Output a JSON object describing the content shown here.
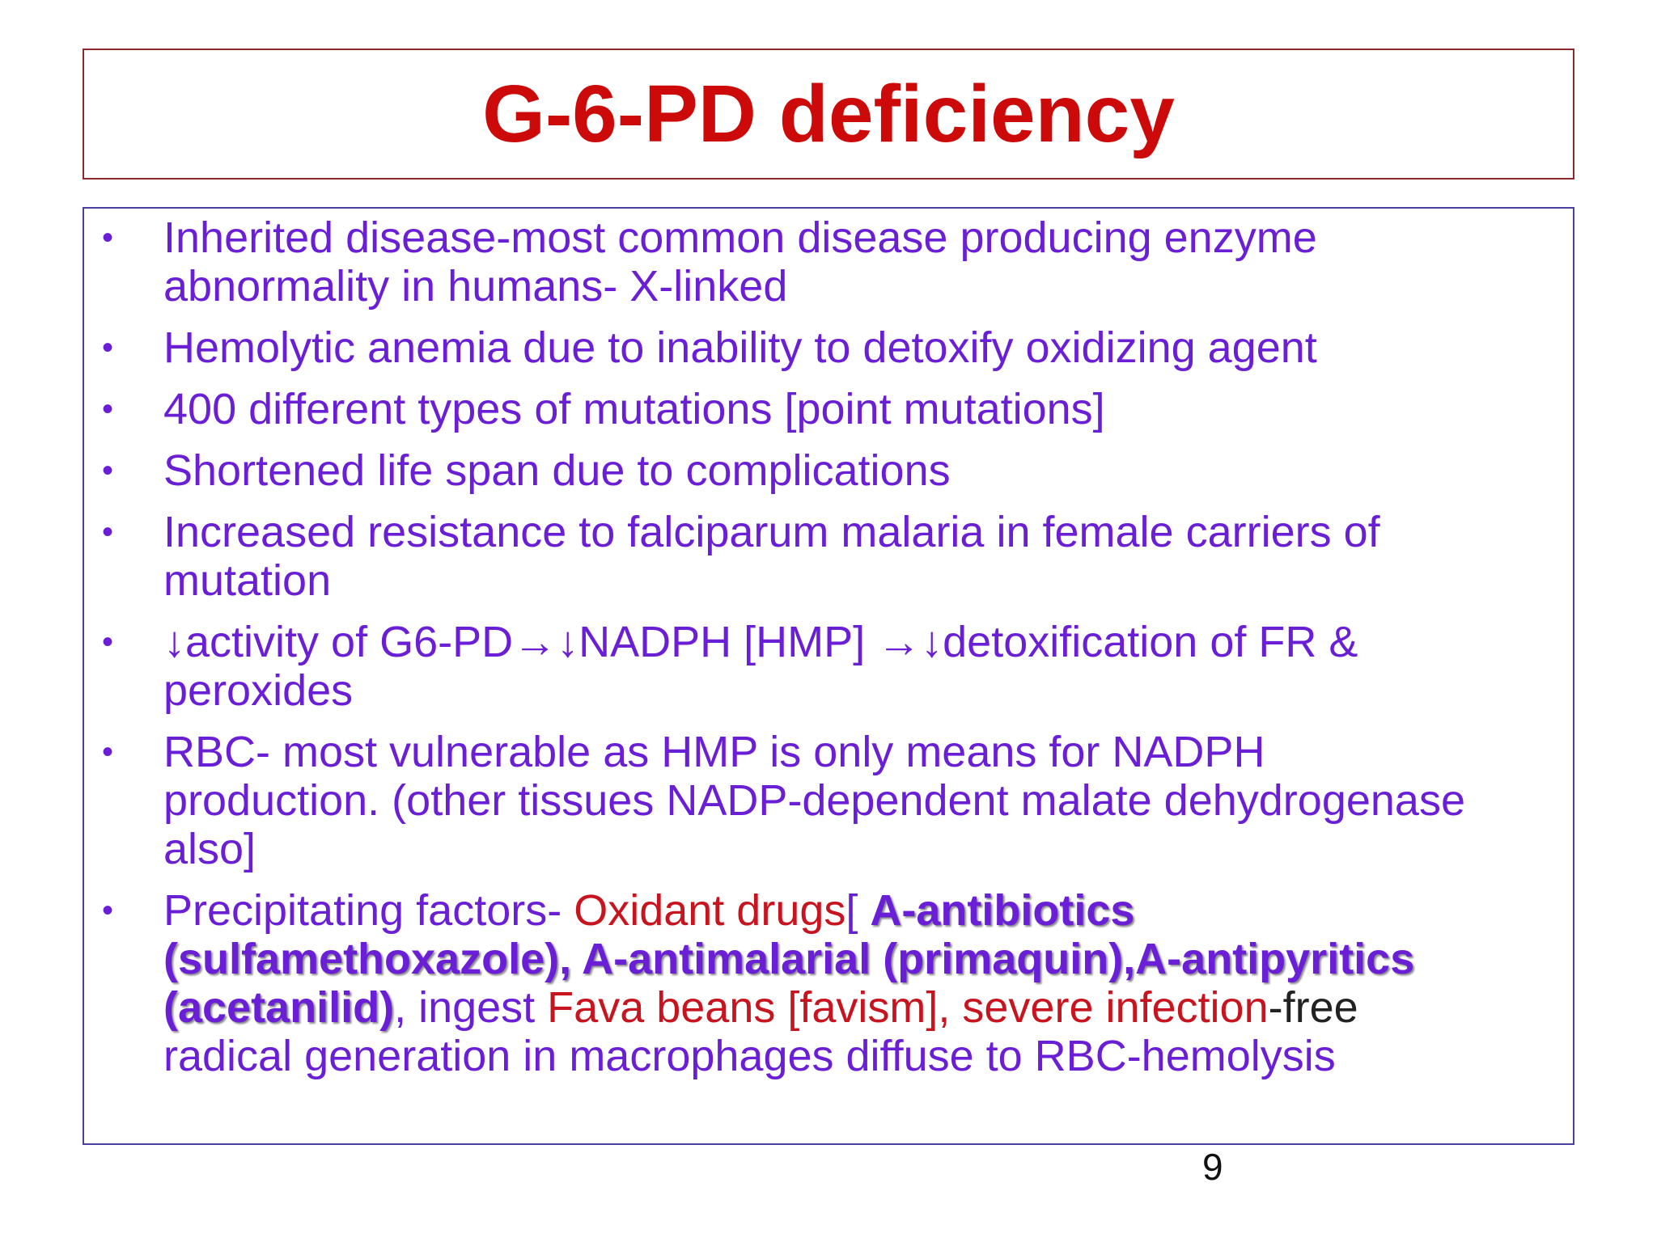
{
  "header": {
    "title": "G-6-PD deficiency"
  },
  "bullet_symbol": "•",
  "bullets": [
    {
      "lines": [
        "Inherited disease-most common disease producing enzyme",
        "abnormality in humans- X-linked"
      ]
    },
    {
      "lines": [
        "Hemolytic anemia due to inability to detoxify oxidizing agent"
      ]
    },
    {
      "lines": [
        "400 different types of mutations [point mutations]"
      ]
    },
    {
      "lines": [
        "Shortened life span due to complications"
      ]
    },
    {
      "lines": [
        "Increased resistance to falciparum malaria in female carriers of",
        "mutation"
      ]
    },
    {
      "lines": [
        "↓activity of G6-PD→↓NADPH [HMP] →↓detoxification of FR &",
        "peroxides"
      ]
    },
    {
      "lines": [
        "RBC- most vulnerable as HMP is only means for NADPH",
        "production. (other tissues NADP-dependent malate dehydrogenase",
        "also]"
      ]
    },
    {
      "lines": [
        [
          {
            "text": "Precipitating factors- ",
            "color": "#6a1fd6"
          },
          {
            "text": "Oxidant drugs",
            "color": "#c8141e"
          },
          {
            "text": "[ ",
            "color": "#6a1fd6"
          },
          {
            "text": "A-antibiotics",
            "color": "#6a1fd6",
            "bold": true
          }
        ],
        [
          {
            "text": "(sulfamethoxazole), A-antimalarial (primaquin),A-antipyritics",
            "color": "#6a1fd6",
            "bold": true
          }
        ],
        [
          {
            "text": "(acetanilid)",
            "color": "#6a1fd6",
            "bold": true
          },
          {
            "text": ", ingest ",
            "color": "#6a1fd6"
          },
          {
            "text": "Fava beans [favism], ",
            "color": "#c8141e"
          },
          {
            "text": "severe infection",
            "color": "#c8141e"
          },
          {
            "text": "-free",
            "color": "#222222"
          }
        ],
        [
          {
            "text": "radical generation in macrophages diffuse to RBC-hemolysis",
            "color": "#6a1fd6"
          }
        ]
      ]
    }
  ],
  "page_number": "9"
}
